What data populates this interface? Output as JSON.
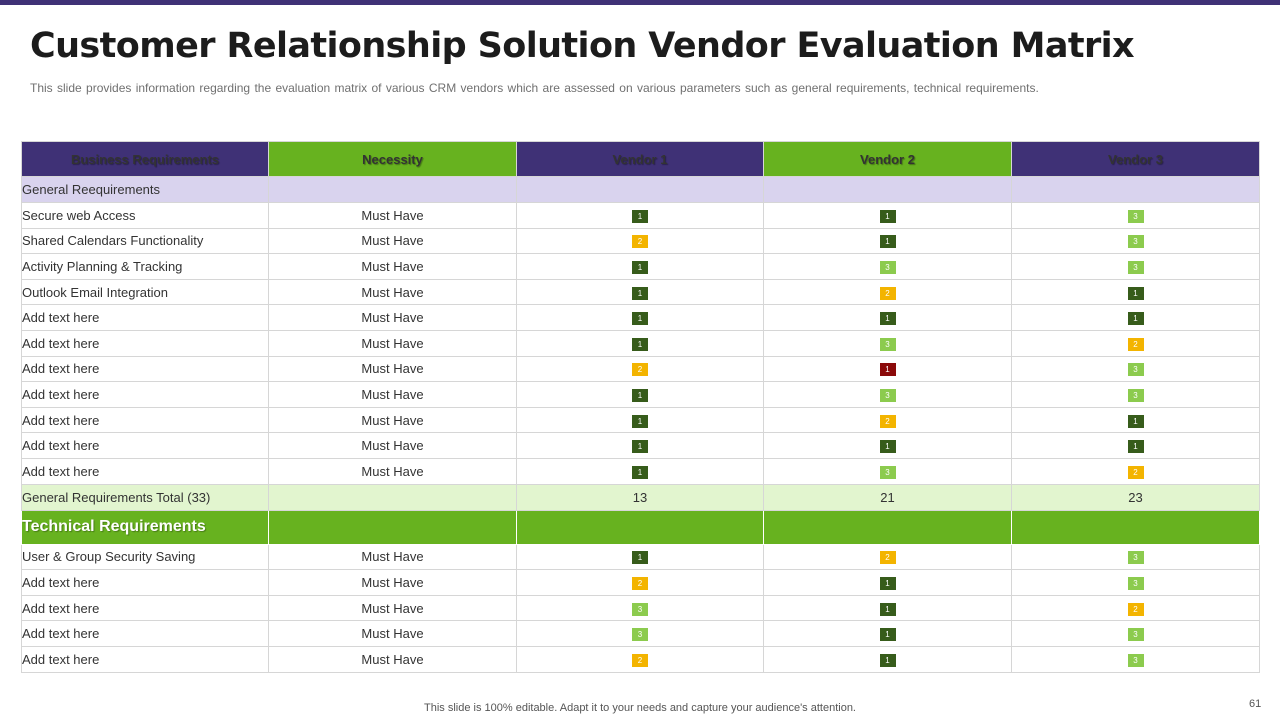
{
  "title": "Customer Relationship Solution Vendor Evaluation Matrix",
  "subtitle": "This slide provides  information  regarding  the  evaluation  matrix of various  CRM vendors  which are assessed on various  parameters  such as general  requirements,  technical requirements.",
  "colors": {
    "header_purple": "#3f3176",
    "header_green": "#67b21f",
    "section_lavender": "#d9d3ee",
    "total_light_green": "#e2f5cf",
    "score_1": "#375c1b",
    "score_2": "#f3b400",
    "score_3": "#8ccb4e",
    "score_1_red": "#8b0a0a"
  },
  "table": {
    "headers": [
      "Business Requirements",
      "Necessity",
      "Vendor 1",
      "Vendor 2",
      "Vendor 3"
    ],
    "general_section": "General  Reequirements",
    "general_rows": [
      {
        "label": "Secure web Access",
        "necessity": "Must Have",
        "scores": [
          "1",
          "1",
          "3"
        ],
        "tones": [
          "score_1",
          "score_1",
          "score_3"
        ]
      },
      {
        "label": "Shared Calendars  Functionality",
        "necessity": "Must Have",
        "scores": [
          "2",
          "1",
          "3"
        ],
        "tones": [
          "score_2",
          "score_1",
          "score_3"
        ]
      },
      {
        "label": "Activity Planning & Tracking",
        "necessity": "Must Have",
        "scores": [
          "1",
          "3",
          "3"
        ],
        "tones": [
          "score_1",
          "score_3",
          "score_3"
        ]
      },
      {
        "label": "Outlook Email Integration",
        "necessity": "Must Have",
        "scores": [
          "1",
          "2",
          "1"
        ],
        "tones": [
          "score_1",
          "score_2",
          "score_1"
        ]
      },
      {
        "label": "Add text here",
        "necessity": "Must Have",
        "scores": [
          "1",
          "1",
          "1"
        ],
        "tones": [
          "score_1",
          "score_1",
          "score_1"
        ]
      },
      {
        "label": "Add text here",
        "necessity": "Must Have",
        "scores": [
          "1",
          "3",
          "2"
        ],
        "tones": [
          "score_1",
          "score_3",
          "score_2"
        ]
      },
      {
        "label": "Add text here",
        "necessity": "Must Have",
        "scores": [
          "2",
          "1",
          "3"
        ],
        "tones": [
          "score_2",
          "score_1_red",
          "score_3"
        ]
      },
      {
        "label": "Add text here",
        "necessity": "Must Have",
        "scores": [
          "1",
          "3",
          "3"
        ],
        "tones": [
          "score_1",
          "score_3",
          "score_3"
        ]
      },
      {
        "label": "Add text here",
        "necessity": "Must Have",
        "scores": [
          "1",
          "2",
          "1"
        ],
        "tones": [
          "score_1",
          "score_2",
          "score_1"
        ]
      },
      {
        "label": "Add text here",
        "necessity": "Must Have",
        "scores": [
          "1",
          "1",
          "1"
        ],
        "tones": [
          "score_1",
          "score_1",
          "score_1"
        ]
      },
      {
        "label": "Add text here",
        "necessity": "Must Have",
        "scores": [
          "1",
          "3",
          "2"
        ],
        "tones": [
          "score_1",
          "score_3",
          "score_2"
        ]
      }
    ],
    "general_total": {
      "label": "General Requirements  Total (33)",
      "values": [
        "13",
        "21",
        "23"
      ]
    },
    "technical_section": "Technical Requirements",
    "technical_rows": [
      {
        "label": "User & Group  Security Saving",
        "necessity": "Must Have",
        "scores": [
          "1",
          "2",
          "3"
        ],
        "tones": [
          "score_1",
          "score_2",
          "score_3"
        ]
      },
      {
        "label": "Add text here",
        "necessity": "Must Have",
        "scores": [
          "2",
          "1",
          "3"
        ],
        "tones": [
          "score_2",
          "score_1",
          "score_3"
        ]
      },
      {
        "label": "Add text here",
        "necessity": "Must Have",
        "scores": [
          "3",
          "1",
          "2"
        ],
        "tones": [
          "score_3",
          "score_1",
          "score_2"
        ]
      },
      {
        "label": "Add text here",
        "necessity": "Must Have",
        "scores": [
          "3",
          "1",
          "3"
        ],
        "tones": [
          "score_3",
          "score_1",
          "score_3"
        ]
      },
      {
        "label": "Add text here",
        "necessity": "Must Have",
        "scores": [
          "2",
          "1",
          "3"
        ],
        "tones": [
          "score_2",
          "score_1",
          "score_3"
        ]
      }
    ]
  },
  "footer": "This slide is 100% editable. Adapt it to your needs and capture your audience's attention.",
  "page_number": "61"
}
